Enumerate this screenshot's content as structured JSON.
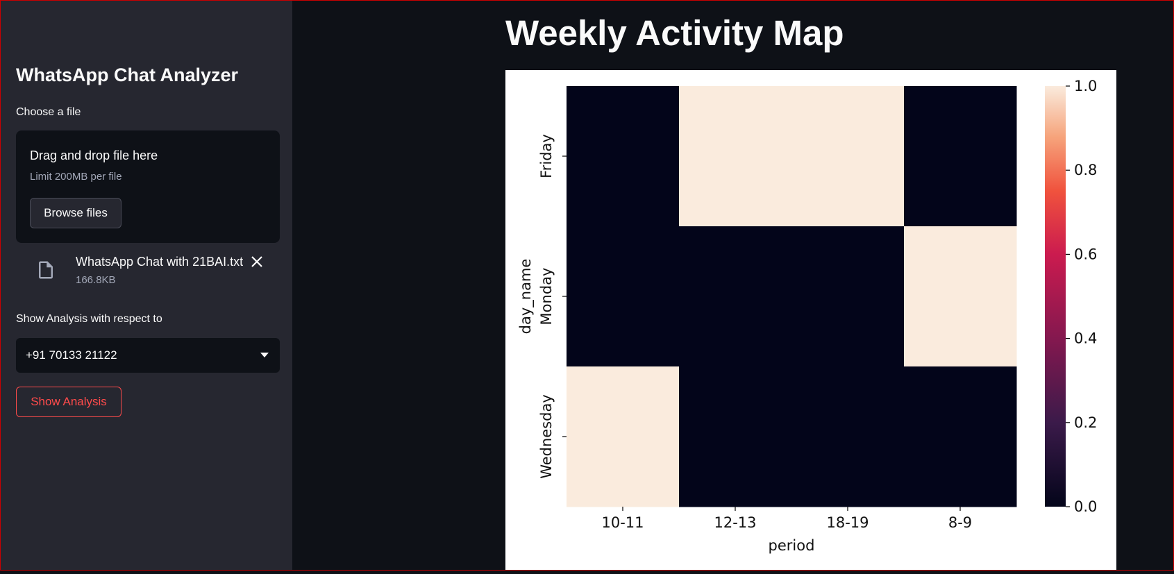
{
  "sidebar": {
    "app_title": "WhatsApp Chat Analyzer",
    "file_label": "Choose a file",
    "uploader": {
      "drag_text": "Drag and drop file here",
      "limit_text": "Limit 200MB per file",
      "browse_label": "Browse files"
    },
    "uploaded_file": {
      "name": "WhatsApp Chat with 21BAI.txt",
      "size": "166.8KB",
      "icon": "file-icon"
    },
    "analysis_label": "Show Analysis with respect to",
    "user_select": {
      "value": "+91 70133 21122"
    },
    "show_button_label": "Show Analysis"
  },
  "main": {
    "title": "Weekly Activity Map"
  },
  "chart_data": {
    "type": "heatmap",
    "x": [
      "10-11",
      "12-13",
      "18-19",
      "8-9"
    ],
    "y": [
      "Friday",
      "Monday",
      "Wednesday"
    ],
    "values": [
      [
        0,
        1,
        1,
        0
      ],
      [
        0,
        0,
        0,
        1
      ],
      [
        1,
        0,
        0,
        0
      ]
    ],
    "xlabel": "period",
    "ylabel": "day_name",
    "colorbar": {
      "range": [
        0.0,
        1.0
      ],
      "ticks": [
        "0.0",
        "0.2",
        "0.4",
        "0.6",
        "0.8",
        "1.0"
      ]
    },
    "colors": {
      "low": "#03051a",
      "high": "#faebdd"
    }
  }
}
